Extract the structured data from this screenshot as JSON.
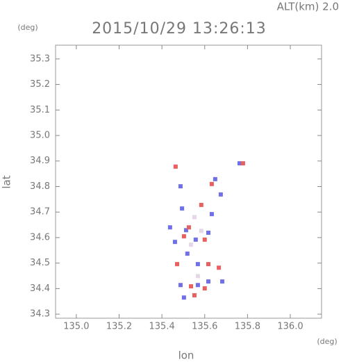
{
  "chart_data": {
    "type": "scatter",
    "title": "2015/10/29 13:26:13",
    "subtitle": "ALT(km) 2.0",
    "xlabel": "lon",
    "ylabel": "lat",
    "x_unit": "(deg)",
    "y_unit": "(deg)",
    "xlim": [
      134.903,
      136.146
    ],
    "ylim": [
      34.284,
      35.354
    ],
    "xticks": [
      {
        "value": 135,
        "label": "135.0"
      },
      135.2,
      135.4,
      135.6,
      135.8,
      {
        "value": 136,
        "label": "136.0"
      }
    ],
    "yticks": [
      34.3,
      34.4,
      34.5,
      34.6,
      34.7,
      34.8,
      34.9,
      {
        "value": 35,
        "label": "35.0"
      },
      35.1,
      35.2,
      35.3
    ],
    "grid": false,
    "series": [
      {
        "color": "#7070e8",
        "x": [
          135.513,
          135.438,
          135.494,
          135.633,
          135.617,
          135.568,
          135.487,
          135.568,
          135.617,
          135.682,
          135.503,
          135.487,
          135.649,
          135.763,
          135.675,
          135.558,
          135.461,
          135.519
        ],
        "y": [
          34.629,
          34.64,
          34.714,
          34.692,
          34.619,
          34.496,
          34.414,
          34.414,
          34.428,
          34.428,
          34.365,
          34.801,
          34.829,
          34.891,
          34.769,
          34.592,
          34.583,
          34.537
        ]
      },
      {
        "color": "#e86060",
        "x": [
          135.584,
          135.617,
          135.471,
          135.536,
          135.6,
          135.779,
          135.666,
          135.503,
          135.6,
          135.633,
          135.464,
          135.526,
          135.552
        ],
        "y": [
          34.728,
          34.496,
          34.496,
          34.409,
          34.401,
          34.891,
          34.482,
          34.605,
          34.592,
          34.81,
          34.878,
          34.64,
          34.374
        ]
      },
      {
        "color": "#e4d8e6",
        "x": [
          135.552,
          135.584,
          135.536,
          135.568
        ],
        "y": [
          34.68,
          34.626,
          34.572,
          34.449
        ]
      }
    ]
  }
}
